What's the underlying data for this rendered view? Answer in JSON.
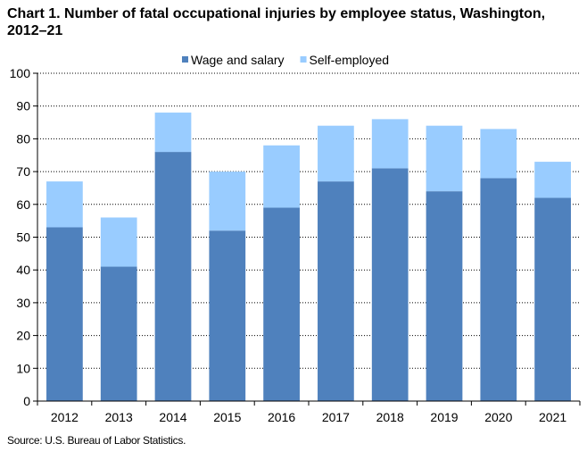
{
  "chart_data": {
    "type": "bar",
    "stacked": true,
    "title": "Chart 1. Number of fatal occupational injuries by employee status, Washington, 2012–21",
    "xlabel": "",
    "ylabel": "",
    "categories": [
      "2012",
      "2013",
      "2014",
      "2015",
      "2016",
      "2017",
      "2018",
      "2019",
      "2020",
      "2021"
    ],
    "series": [
      {
        "name": "Wage and salary",
        "color": "#4f81bd",
        "values": [
          53,
          41,
          76,
          52,
          59,
          67,
          71,
          64,
          68,
          62
        ]
      },
      {
        "name": "Self-employed",
        "color": "#99ccff",
        "values": [
          14,
          15,
          12,
          18,
          19,
          17,
          15,
          20,
          15,
          11
        ]
      }
    ],
    "ylim": [
      0,
      100
    ],
    "yticks": [
      0,
      10,
      20,
      30,
      40,
      50,
      60,
      70,
      80,
      90,
      100
    ],
    "grid": true,
    "legend_position": "top-center",
    "source": "Source: U.S. Bureau of Labor Statistics."
  }
}
